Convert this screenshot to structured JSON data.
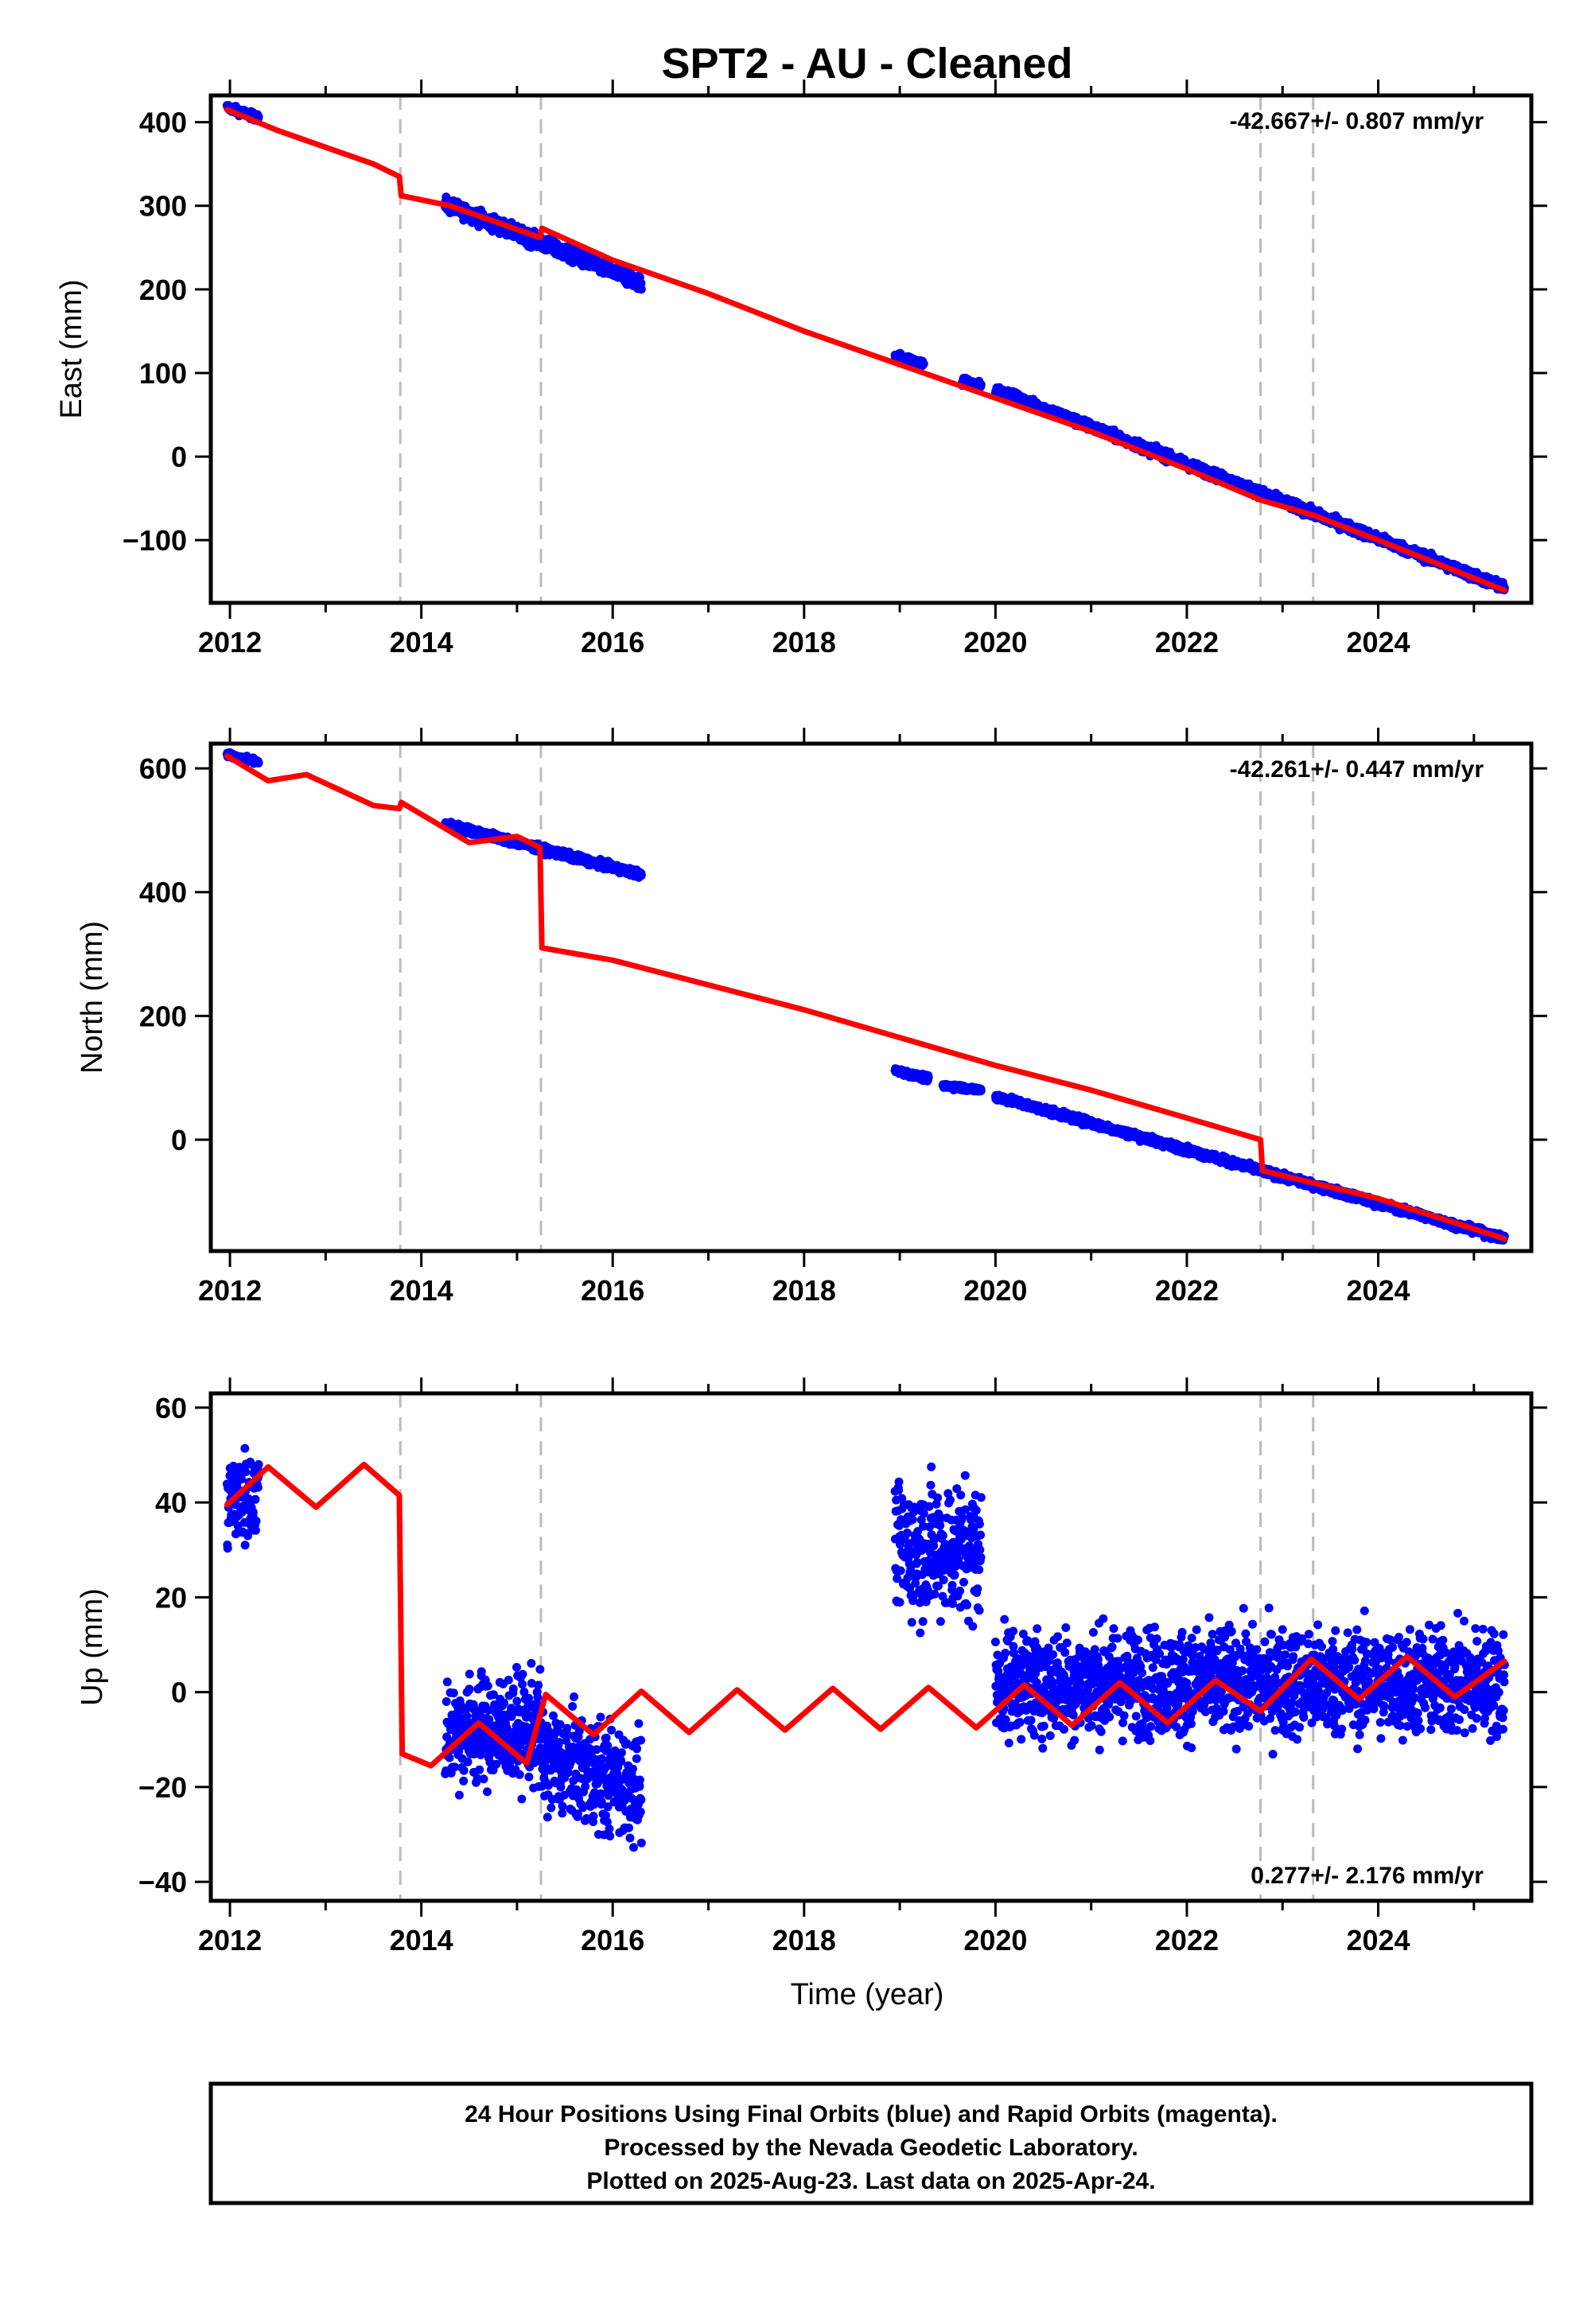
{
  "title": "SPT2  - AU - Cleaned",
  "x_axis_label": "Time (year)",
  "footer": {
    "line1": "24 Hour Positions Using Final Orbits (blue) and Rapid Orbits (magenta).",
    "line2": "Processed by the Nevada Geodetic Laboratory.",
    "line3": "Plotted on 2025-Aug-23. Last data on 2025-Apr-24."
  },
  "colors": {
    "data": "#0000ff",
    "model": "#ff0000",
    "event_lines": "#bbbbbb",
    "axes": "#000000"
  },
  "chart_data": [
    {
      "type": "scatter",
      "component": "East",
      "ylabel": "East (mm)",
      "xlabel": "",
      "xlim": [
        2011.8,
        2025.6
      ],
      "ylim": [
        -175,
        432
      ],
      "xticks": [
        2012,
        2014,
        2016,
        2018,
        2020,
        2022,
        2024
      ],
      "yticks": [
        -100,
        0,
        100,
        200,
        300,
        400
      ],
      "rate_label": "-42.667+/- 0.807 mm/yr",
      "rate_position": "top-right",
      "event_lines": [
        2013.78,
        2015.25,
        2022.77,
        2023.32
      ],
      "data_series": {
        "name": "",
        "segments": [
          {
            "start": 2011.97,
            "end": 2012.3,
            "y_start": 418,
            "y_end": 405,
            "scatter": 3
          },
          {
            "start": 2014.25,
            "end": 2016.3,
            "y_start": 302,
            "y_end": 207,
            "scatter": 6
          },
          {
            "start": 2018.95,
            "end": 2019.25,
            "y_start": 120,
            "y_end": 110,
            "scatter": 4
          },
          {
            "start": 2019.65,
            "end": 2019.85,
            "y_start": 90,
            "y_end": 85,
            "scatter": 3
          },
          {
            "start": 2020.0,
            "end": 2025.32,
            "y_start": 80,
            "y_end": -157,
            "scatter": 4
          }
        ]
      },
      "model_series": {
        "name": "",
        "x": [
          2011.97,
          2012.5,
          2013.0,
          2013.5,
          2013.77,
          2013.79,
          2014.3,
          2015.24,
          2015.26,
          2016.0,
          2017.0,
          2018.0,
          2019.0,
          2020.0,
          2021.0,
          2022.0,
          2022.77,
          2023.32,
          2024.0,
          2025.32
        ],
        "y": [
          415,
          390,
          370,
          350,
          335,
          312,
          300,
          262,
          273,
          235,
          195,
          150,
          110,
          70,
          30,
          -15,
          -52,
          -70,
          -100,
          -160
        ]
      }
    },
    {
      "type": "scatter",
      "component": "North",
      "ylabel": "North (mm)",
      "xlabel": "",
      "xlim": [
        2011.8,
        2025.6
      ],
      "ylim": [
        -180,
        640
      ],
      "xticks": [
        2012,
        2014,
        2016,
        2018,
        2020,
        2022,
        2024
      ],
      "yticks": [
        0,
        200,
        400,
        600
      ],
      "rate_label": "-42.261+/- 0.447 mm/yr",
      "rate_position": "top-right",
      "event_lines": [
        2013.78,
        2015.25,
        2022.77,
        2023.32
      ],
      "data_series": {
        "name": "",
        "segments": [
          {
            "start": 2011.97,
            "end": 2012.3,
            "y_start": 622,
            "y_end": 610,
            "scatter": 3
          },
          {
            "start": 2014.25,
            "end": 2016.3,
            "y_start": 510,
            "y_end": 428,
            "scatter": 4
          },
          {
            "start": 2018.95,
            "end": 2019.3,
            "y_start": 112,
            "y_end": 98,
            "scatter": 3
          },
          {
            "start": 2019.45,
            "end": 2019.85,
            "y_start": 88,
            "y_end": 80,
            "scatter": 3
          },
          {
            "start": 2020.0,
            "end": 2025.32,
            "y_start": 70,
            "y_end": -160,
            "scatter": 4
          }
        ]
      },
      "model_series": {
        "name": "",
        "x": [
          2011.97,
          2012.4,
          2012.8,
          2013.5,
          2013.77,
          2013.79,
          2014.5,
          2015.0,
          2015.24,
          2015.26,
          2016.0,
          2017.0,
          2018.0,
          2019.0,
          2020.0,
          2021.0,
          2022.0,
          2022.77,
          2022.79,
          2023.32,
          2024.0,
          2025.32
        ],
        "y": [
          620,
          580,
          590,
          540,
          535,
          545,
          480,
          490,
          472,
          310,
          290,
          250,
          210,
          165,
          120,
          80,
          35,
          0,
          -50,
          -70,
          -95,
          -160
        ]
      }
    },
    {
      "type": "scatter",
      "component": "Up",
      "ylabel": "Up (mm)",
      "xlabel": "Time (year)",
      "xlim": [
        2011.8,
        2025.6
      ],
      "ylim": [
        -44,
        63
      ],
      "xticks": [
        2012,
        2014,
        2016,
        2018,
        2020,
        2022,
        2024
      ],
      "yticks": [
        -40,
        -20,
        0,
        20,
        40,
        60
      ],
      "rate_label": "0.277+/- 2.176 mm/yr",
      "rate_position": "bottom-right",
      "event_lines": [
        2013.78,
        2015.25,
        2022.77,
        2023.32
      ],
      "data_series": {
        "name": "",
        "segments": [
          {
            "start": 2011.97,
            "end": 2012.3,
            "y_start": 40,
            "y_end": 42,
            "scatter": 7
          },
          {
            "start": 2014.25,
            "end": 2015.25,
            "y_start": -8,
            "y_end": -8,
            "scatter": 8
          },
          {
            "start": 2015.25,
            "end": 2016.3,
            "y_start": -14,
            "y_end": -20,
            "scatter": 8
          },
          {
            "start": 2018.95,
            "end": 2019.85,
            "y_start": 30,
            "y_end": 30,
            "scatter": 10
          },
          {
            "start": 2020.0,
            "end": 2025.32,
            "y_start": 2,
            "y_end": 2,
            "scatter": 8
          }
        ]
      },
      "model_series": {
        "name": "",
        "offset_steps": [
          {
            "from": 2011.97,
            "to": 2013.77,
            "base": 43.5,
            "slope": 0.0,
            "amplitude": 4.5
          },
          {
            "from": 2013.79,
            "to": 2015.24,
            "base": -9.5,
            "slope": 0.6,
            "amplitude": 4.5
          },
          {
            "from": 2015.26,
            "to": 2022.76,
            "base": -4.5,
            "slope": 0.2,
            "amplitude": 4.5
          },
          {
            "from": 2022.78,
            "to": 2025.32,
            "base": 2.5,
            "slope": 0.3,
            "amplitude": 4.5
          }
        ],
        "x": [
          2011.97,
          2012.4,
          2012.9,
          2013.4,
          2013.77,
          2013.8,
          2014.1,
          2014.6,
          2015.1,
          2015.3,
          2015.8,
          2016.3,
          2016.8,
          2017.3,
          2017.8,
          2018.3,
          2018.8,
          2019.3,
          2019.8,
          2020.3,
          2020.8,
          2021.3,
          2021.8,
          2022.3,
          2022.77,
          2023.3,
          2023.8,
          2024.3,
          2024.8,
          2025.32
        ],
        "y": [
          39.5,
          47.5,
          39.0,
          48.0,
          41.5,
          -13.0,
          -15.5,
          -6.5,
          -15.0,
          -0.5,
          -9.0,
          0.2,
          -8.5,
          0.5,
          -8.0,
          0.8,
          -7.8,
          1.0,
          -7.5,
          1.5,
          -7.0,
          2.0,
          -6.5,
          2.5,
          -4.0,
          7.0,
          -1.5,
          7.5,
          -1.0,
          6.5
        ]
      }
    }
  ]
}
